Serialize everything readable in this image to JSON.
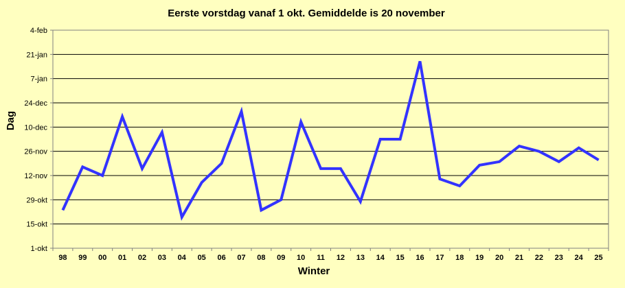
{
  "chart_data": {
    "type": "line",
    "title": "Eerste vorstdag vanaf 1 okt. Gemiddelde is 20 november",
    "xlabel": "Winter",
    "ylabel": "Dag",
    "categories": [
      "98",
      "99",
      "00",
      "01",
      "02",
      "03",
      "04",
      "05",
      "06",
      "07",
      "08",
      "09",
      "10",
      "11",
      "12",
      "13",
      "14",
      "15",
      "16",
      "17",
      "18",
      "19",
      "20",
      "21",
      "22",
      "23",
      "24",
      "25"
    ],
    "y_tick_labels": [
      "1-okt",
      "15-okt",
      "29-okt",
      "12-nov",
      "26-nov",
      "10-dec",
      "24-dec",
      "7-jan",
      "21-jan",
      "4-feb"
    ],
    "y_tick_values": [
      0,
      14,
      28,
      42,
      56,
      70,
      84,
      98,
      112,
      126
    ],
    "ylim": [
      0,
      126
    ],
    "y_unit_note": "days after 1 October",
    "series": [
      {
        "values": [
          22,
          47,
          42,
          76,
          46,
          67,
          18,
          38,
          49,
          79,
          22,
          28,
          73,
          46,
          46,
          27,
          63,
          63,
          108,
          40,
          36,
          48,
          50,
          59,
          56,
          50,
          58,
          51
        ]
      }
    ],
    "line_color": "#3333FF",
    "grid": true,
    "legend": "none",
    "plot_background": "#FFFFC0"
  }
}
